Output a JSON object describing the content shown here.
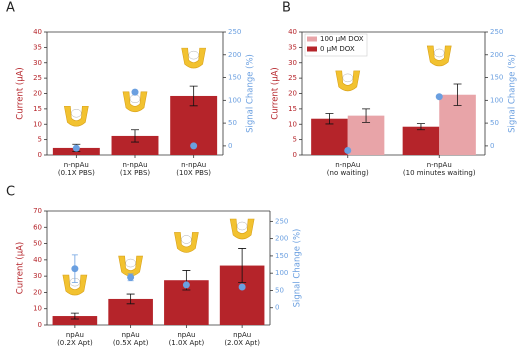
{
  "chart_data": [
    {
      "type": "bar",
      "panel": "A",
      "y_label": "Current (μA)",
      "y2_label": "Signal Change (%)",
      "categories": [
        "n-npAu\n(0.1X PBS)",
        "n-npAu\n(1X PBS)",
        "n-npAu\n(10X PBS)"
      ],
      "ylim": [
        0,
        40
      ],
      "yticks": [
        0,
        5,
        10,
        15,
        20,
        25,
        30,
        35,
        40
      ],
      "y2lim": [
        -20,
        250
      ],
      "y2ticks": [
        0,
        50,
        100,
        150,
        200,
        250
      ],
      "series": [
        {
          "color": "#b5242a",
          "values": [
            2.3,
            6.2,
            19.2
          ],
          "errors": [
            1.2,
            2.0,
            3.2
          ]
        },
        {
          "axis": "y2",
          "color": "#6a9fe0",
          "values": [
            -5,
            118,
            0
          ]
        }
      ]
    },
    {
      "type": "bar",
      "panel": "B",
      "y_label": "Current (μA)",
      "y2_label": "Signal Change (%)",
      "categories": [
        "n-npAu\n(no waiting)",
        "n-npAu\n(10 minutes waiting)"
      ],
      "ylim": [
        0,
        40
      ],
      "yticks": [
        0,
        5,
        10,
        15,
        20,
        25,
        30,
        35,
        40
      ],
      "y2lim": [
        -20,
        250
      ],
      "y2ticks": [
        0,
        50,
        100,
        150,
        200,
        250
      ],
      "legend": "upper left",
      "series": [
        {
          "name": "0 μM DOX",
          "color": "#b5242a",
          "values": [
            11.8,
            9.2
          ],
          "errors": [
            1.7,
            1.0
          ]
        },
        {
          "name": "100 μM DOX",
          "color": "#e8a4a8",
          "values": [
            12.8,
            19.6
          ],
          "errors": [
            2.2,
            3.5
          ]
        },
        {
          "axis": "y2",
          "color": "#6a9fe0",
          "values": [
            -10,
            108
          ]
        }
      ]
    },
    {
      "type": "bar",
      "panel": "C",
      "y_label": "Current (μA)",
      "y2_label": "Signal Change (%)",
      "categories": [
        "npAu\n(0.2X Apt)",
        "npAu\n(0.5X Apt)",
        "npAu\n(1.0X Apt)",
        "npAu\n(2.0X Apt)"
      ],
      "ylim": [
        0,
        70
      ],
      "yticks": [
        0,
        10,
        20,
        30,
        40,
        50,
        60,
        70
      ],
      "y2lim": [
        -50,
        280
      ],
      "y2ticks": [
        0,
        50,
        100,
        150,
        200,
        250
      ],
      "series": [
        {
          "color": "#b5242a",
          "values": [
            5.5,
            16,
            27.5,
            36.5
          ],
          "errors": [
            1.8,
            3,
            6,
            10.5
          ]
        },
        {
          "axis": "y2",
          "color": "#6a9fe0",
          "values": [
            113,
            88,
            66,
            60
          ],
          "errors": [
            40,
            10,
            0,
            0
          ]
        }
      ]
    }
  ]
}
